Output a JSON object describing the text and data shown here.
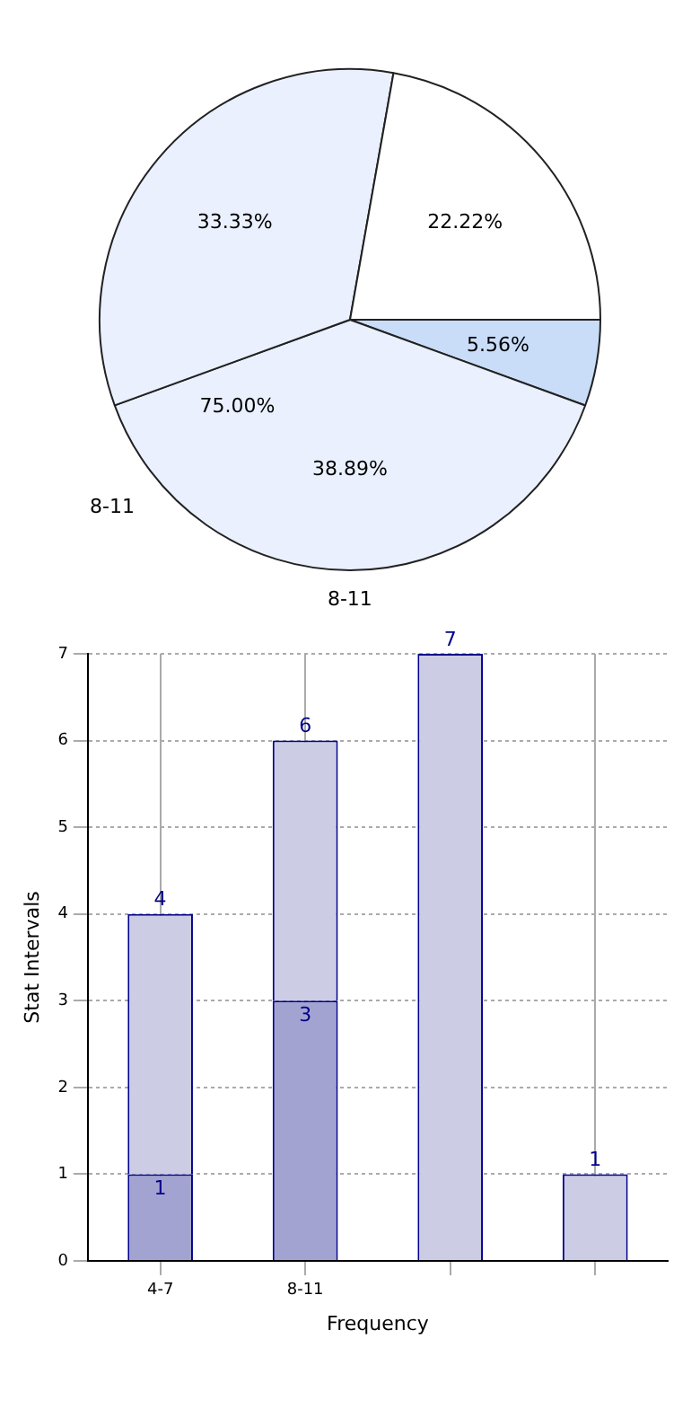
{
  "chart_data": [
    {
      "type": "pie",
      "categories": [
        null,
        "8-11",
        null,
        null
      ],
      "values": [
        5.56,
        38.89,
        33.33,
        22.22
      ],
      "colors": [
        "#c9dcf8",
        "#eaf0fd",
        "#eaf0fd",
        "#ffffff"
      ],
      "value_labels": [
        "5.56%",
        "38.89%",
        "33.33%",
        "22.22%"
      ],
      "annotations": [
        "75.00%",
        "8-11"
      ]
    },
    {
      "type": "bar",
      "categories": [
        "4-7",
        "8-11",
        null,
        null
      ],
      "series": [
        {
          "color": "#a3a3d1",
          "values": [
            1,
            3,
            null,
            null
          ],
          "value_labels": [
            "1",
            "3",
            null,
            null
          ]
        },
        {
          "color": "#ccccE5",
          "values": [
            3,
            3,
            7,
            1
          ]
        }
      ],
      "stacked": true,
      "totals": [
        "4",
        "6",
        "7",
        "1"
      ],
      "xlabel": "Frequency",
      "ylabel": "Stat Intervals",
      "ylim": [
        0,
        7
      ],
      "yticks": [
        0,
        1,
        2,
        3,
        4,
        5,
        6,
        7
      ],
      "grid": true
    }
  ]
}
